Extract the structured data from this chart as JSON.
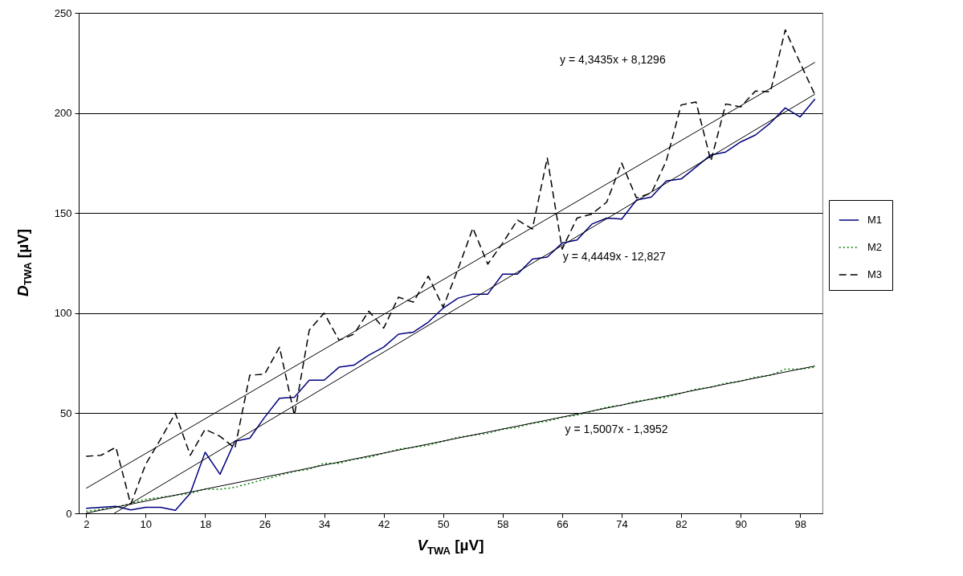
{
  "chart_data": {
    "type": "line",
    "xlabel": "V$_{TWA}$ [µV]",
    "ylabel": "D$_{TWA}$ [µV]",
    "x": [
      2,
      4,
      6,
      8,
      10,
      12,
      14,
      16,
      18,
      20,
      22,
      24,
      26,
      28,
      30,
      32,
      34,
      36,
      38,
      40,
      42,
      44,
      46,
      48,
      50,
      52,
      54,
      56,
      58,
      60,
      62,
      64,
      66,
      68,
      70,
      72,
      74,
      76,
      78,
      80,
      82,
      84,
      86,
      88,
      90,
      92,
      94,
      96,
      98,
      100
    ],
    "xlim": [
      1,
      101
    ],
    "xticks": [
      2,
      10,
      18,
      26,
      34,
      42,
      50,
      58,
      66,
      74,
      82,
      90,
      98
    ],
    "ylim": [
      0,
      250
    ],
    "yticks": [
      0,
      50,
      100,
      150,
      200,
      250
    ],
    "grid": "y",
    "legend": "right",
    "series": [
      {
        "name": "M1",
        "color": "#000080",
        "line_style": "solid",
        "values": [
          2.5,
          3,
          3.5,
          1.7,
          3,
          3,
          1.5,
          10,
          30.5,
          19.5,
          36,
          37.5,
          48,
          57.5,
          58,
          66.5,
          66.5,
          73,
          74,
          79,
          83,
          89.5,
          90.5,
          95.5,
          102.5,
          107.5,
          109.5,
          109.5,
          119.5,
          119.5,
          127,
          128,
          135,
          136.5,
          144.5,
          147.5,
          147,
          156.5,
          158,
          166,
          167,
          173,
          179,
          180.5,
          185.5,
          189,
          195,
          202.5,
          198,
          207
        ]
      },
      {
        "name": "M2",
        "color": "#008000",
        "line_style": "dotted",
        "values": [
          1,
          2,
          3,
          5,
          7,
          8,
          9,
          10,
          12,
          12,
          13,
          15,
          17,
          19,
          21,
          22,
          25,
          25,
          27,
          28,
          30,
          32,
          33,
          34,
          36,
          38,
          39,
          40,
          42,
          43,
          45,
          46,
          48,
          49,
          51,
          53,
          54,
          56,
          57,
          58,
          60,
          62,
          63,
          65,
          66,
          68,
          69,
          72,
          72,
          73
        ]
      },
      {
        "name": "M3",
        "color": "#000000",
        "line_style": "dashed",
        "values": [
          28.5,
          29,
          33,
          4.5,
          24.5,
          37,
          50,
          29,
          42,
          38.5,
          32.5,
          69,
          69.5,
          83,
          49,
          91.5,
          100,
          86.5,
          89.5,
          101,
          92.5,
          108,
          105.5,
          118.5,
          103,
          122,
          142.5,
          124.5,
          135,
          146.5,
          142,
          177.5,
          132,
          147.5,
          149.5,
          155.5,
          175,
          157.5,
          160,
          176,
          204,
          205.5,
          176,
          204.5,
          203,
          211,
          210.5,
          241.5,
          225,
          209
        ]
      },
      {
        "type": "line",
        "color": "#000000",
        "line_style": "solid",
        "x": [
          2,
          100
        ],
        "values": [
          12.5,
          225.3
        ]
      },
      {
        "type": "line",
        "color": "#000000",
        "line_style": "solid",
        "x": [
          5.77,
          100
        ],
        "values": [
          0,
          209.4
        ]
      },
      {
        "type": "line",
        "color": "#000000",
        "line_style": "solid",
        "x": [
          2,
          100
        ],
        "values": [
          0.1,
          73.6
        ]
      }
    ],
    "annotations": [
      "y = 4,3435x + 8,1296",
      "y = 4,4449x - 12,827",
      "y = 1,5007x - 1,3952"
    ]
  }
}
